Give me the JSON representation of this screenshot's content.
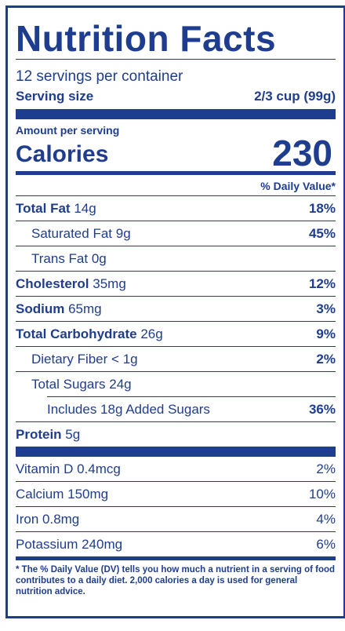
{
  "title": "Nutrition Facts",
  "servings_per_container": "12 servings per container",
  "serving_size_label": "Serving size",
  "serving_size_value": "2/3 cup (99g)",
  "amount_per_serving": "Amount per serving",
  "calories_label": "Calories",
  "calories_value": "230",
  "daily_value_header": "% Daily Value*",
  "nutrients": [
    {
      "name": "Total Fat",
      "amount": "14g",
      "dv": "18%"
    },
    {
      "name": "Saturated Fat",
      "amount": "9g",
      "dv": "45%"
    },
    {
      "name": "Trans Fat",
      "amount": "0g",
      "dv": ""
    },
    {
      "name": "Cholesterol",
      "amount": "35mg",
      "dv": "12%"
    },
    {
      "name": "Sodium",
      "amount": "65mg",
      "dv": "3%"
    },
    {
      "name": "Total Carbohydrate",
      "amount": "26g",
      "dv": "9%"
    },
    {
      "name": "Dietary Fiber",
      "amount": "< 1g",
      "dv": "2%"
    },
    {
      "name": "Total Sugars",
      "amount": "24g",
      "dv": ""
    },
    {
      "name": "Includes 18g Added Sugars",
      "amount": "",
      "dv": "36%"
    },
    {
      "name": "Protein",
      "amount": "5g",
      "dv": ""
    }
  ],
  "vitamins": [
    {
      "name": "Vitamin D 0.4mcg",
      "dv": "2%"
    },
    {
      "name": "Calcium 150mg",
      "dv": "10%"
    },
    {
      "name": "Iron 0.8mg",
      "dv": "4%"
    },
    {
      "name": "Potassium 240mg",
      "dv": "6%"
    }
  ],
  "footnote": "* The % Daily Value (DV) tells you how much a nutrient in a serving of food contributes to a daily diet. 2,000 calories a day is used for general nutrition advice.",
  "colors": {
    "ink": "#1f3d8f",
    "background": "#ffffff"
  }
}
